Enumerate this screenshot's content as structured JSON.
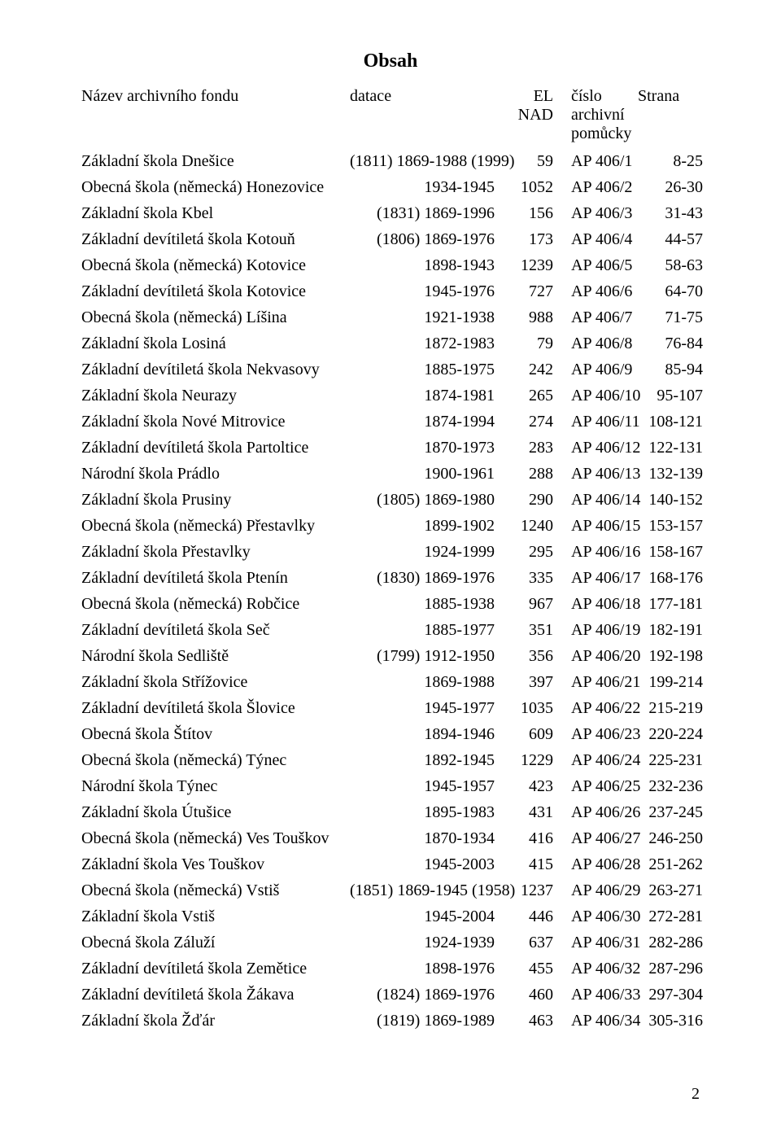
{
  "title": "Obsah",
  "page_number": "2",
  "header": {
    "name": "Název archivního fondu",
    "date": "datace",
    "el1": "EL",
    "el2": "NAD",
    "arch1": "číslo",
    "arch2": "archivní",
    "arch3": "pomůcky",
    "page": "Strana"
  },
  "rows": [
    {
      "name": "Základní škola Dnešice",
      "date": "(1811) 1869-1988 (1999)",
      "el": "59",
      "arch": "AP 406/1",
      "pg": "8-25"
    },
    {
      "name": "Obecná škola (německá) Honezovice",
      "date": "1934-1945",
      "el": "1052",
      "arch": "AP 406/2",
      "pg": "26-30"
    },
    {
      "name": "Základní škola Kbel",
      "date": "(1831) 1869-1996",
      "el": "156",
      "arch": "AP 406/3",
      "pg": "31-43"
    },
    {
      "name": "Základní devítiletá škola Kotouň",
      "date": "(1806) 1869-1976",
      "el": "173",
      "arch": "AP 406/4",
      "pg": "44-57"
    },
    {
      "name": "Obecná škola (německá) Kotovice",
      "date": "1898-1943",
      "el": "1239",
      "arch": "AP 406/5",
      "pg": "58-63"
    },
    {
      "name": "Základní devítiletá škola Kotovice",
      "date": "1945-1976",
      "el": "727",
      "arch": "AP 406/6",
      "pg": "64-70"
    },
    {
      "name": "Obecná škola (německá) Líšina",
      "date": "1921-1938",
      "el": "988",
      "arch": "AP 406/7",
      "pg": "71-75"
    },
    {
      "name": "Základní škola Losiná",
      "date": "1872-1983",
      "el": "79",
      "arch": "AP 406/8",
      "pg": "76-84"
    },
    {
      "name": "Základní devítiletá škola Nekvasovy",
      "date": "1885-1975",
      "el": "242",
      "arch": "AP 406/9",
      "pg": "85-94"
    },
    {
      "name": "Základní škola Neurazy",
      "date": "1874-1981",
      "el": "265",
      "arch": "AP 406/10",
      "pg": "95-107"
    },
    {
      "name": "Základní škola Nové Mitrovice",
      "date": "1874-1994",
      "el": "274",
      "arch": "AP 406/11",
      "pg": "108-121"
    },
    {
      "name": "Základní devítiletá škola Partoltice",
      "date": "1870-1973",
      "el": "283",
      "arch": "AP 406/12",
      "pg": "122-131"
    },
    {
      "name": "Národní škola Prádlo",
      "date": "1900-1961",
      "el": "288",
      "arch": "AP 406/13",
      "pg": "132-139"
    },
    {
      "name": "Základní škola Prusiny",
      "date": "(1805) 1869-1980",
      "el": "290",
      "arch": "AP 406/14",
      "pg": "140-152"
    },
    {
      "name": "Obecná škola (německá) Přestavlky",
      "date": "1899-1902",
      "el": "1240",
      "arch": "AP 406/15",
      "pg": "153-157"
    },
    {
      "name": "Základní škola Přestavlky",
      "date": "1924-1999",
      "el": "295",
      "arch": "AP 406/16",
      "pg": "158-167"
    },
    {
      "name": "Základní devítiletá škola Ptenín",
      "date": "(1830) 1869-1976",
      "el": "335",
      "arch": "AP 406/17",
      "pg": "168-176"
    },
    {
      "name": "Obecná škola (německá) Robčice",
      "date": "1885-1938",
      "el": "967",
      "arch": "AP 406/18",
      "pg": "177-181"
    },
    {
      "name": "Základní devítiletá škola Seč",
      "date": "1885-1977",
      "el": "351",
      "arch": "AP 406/19",
      "pg": "182-191"
    },
    {
      "name": "Národní škola Sedliště",
      "date": "(1799) 1912-1950",
      "el": "356",
      "arch": "AP 406/20",
      "pg": "192-198"
    },
    {
      "name": "Základní škola Střížovice",
      "date": "1869-1988",
      "el": "397",
      "arch": "AP 406/21",
      "pg": "199-214"
    },
    {
      "name": "Základní devítiletá škola Šlovice",
      "date": "1945-1977",
      "el": "1035",
      "arch": "AP 406/22",
      "pg": "215-219"
    },
    {
      "name": "Obecná škola Štítov",
      "date": "1894-1946",
      "el": "609",
      "arch": "AP 406/23",
      "pg": "220-224"
    },
    {
      "name": "Obecná škola (německá) Týnec",
      "date": "1892-1945",
      "el": "1229",
      "arch": "AP 406/24",
      "pg": "225-231"
    },
    {
      "name": "Národní škola Týnec",
      "date": "1945-1957",
      "el": "423",
      "arch": "AP 406/25",
      "pg": "232-236"
    },
    {
      "name": "Základní škola Útušice",
      "date": "1895-1983",
      "el": "431",
      "arch": "AP 406/26",
      "pg": "237-245"
    },
    {
      "name": "Obecná škola (německá) Ves Touškov",
      "date": "1870-1934",
      "el": "416",
      "arch": "AP 406/27",
      "pg": "246-250"
    },
    {
      "name": "Základní škola Ves Touškov",
      "date": "1945-2003",
      "el": "415",
      "arch": "AP 406/28",
      "pg": "251-262"
    },
    {
      "name": "Obecná škola (německá) Vstiš",
      "date": "(1851) 1869-1945 (1958)",
      "el": "1237",
      "arch": "AP 406/29",
      "pg": "263-271"
    },
    {
      "name": "Základní škola Vstiš",
      "date": "1945-2004",
      "el": "446",
      "arch": "AP 406/30",
      "pg": "272-281"
    },
    {
      "name": "Obecná škola Záluží",
      "date": "1924-1939",
      "el": "637",
      "arch": "AP 406/31",
      "pg": "282-286"
    },
    {
      "name": "Základní devítiletá škola Zemětice",
      "date": "1898-1976",
      "el": "455",
      "arch": "AP 406/32",
      "pg": "287-296"
    },
    {
      "name": "Základní devítiletá škola Žákava",
      "date": "(1824) 1869-1976",
      "el": "460",
      "arch": "AP 406/33",
      "pg": "297-304"
    },
    {
      "name": "Základní škola Žďár",
      "date": "(1819) 1869-1989",
      "el": "463",
      "arch": "AP 406/34",
      "pg": "305-316"
    }
  ]
}
